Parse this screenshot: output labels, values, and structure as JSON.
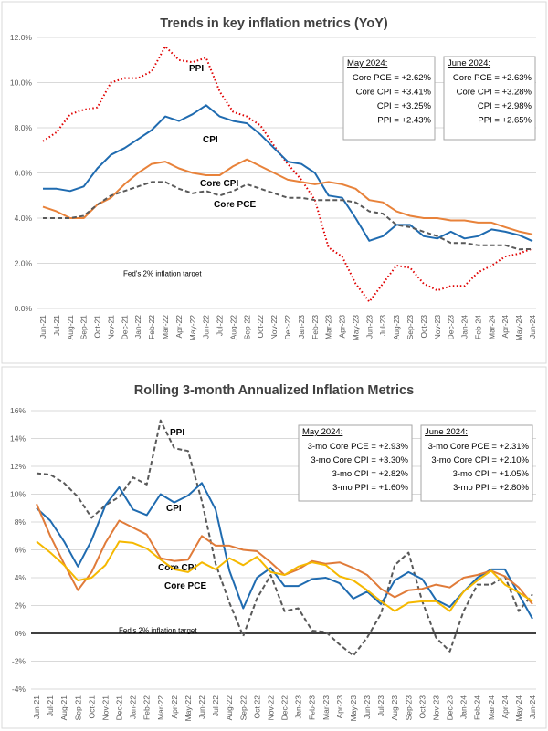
{
  "chart_data": [
    {
      "type": "line",
      "title": "Trends in key inflation metrics (YoY)",
      "xlabel": "",
      "ylabel": "",
      "ylim": [
        0,
        12
      ],
      "yticks": [
        "0.0%",
        "2.0%",
        "4.0%",
        "6.0%",
        "8.0%",
        "10.0%",
        "12.0%"
      ],
      "grid": true,
      "categories": [
        "Jun-21",
        "Jul-21",
        "Aug-21",
        "Sep-21",
        "Oct-21",
        "Nov-21",
        "Dec-21",
        "Jan-22",
        "Feb-22",
        "Mar-22",
        "Apr-22",
        "May-22",
        "Jun-22",
        "Jul-22",
        "Aug-22",
        "Sep-22",
        "Oct-22",
        "Nov-22",
        "Dec-22",
        "Jan-23",
        "Feb-23",
        "Mar-23",
        "Apr-23",
        "May-23",
        "Jun-23",
        "Jul-23",
        "Aug-23",
        "Sep-23",
        "Oct-23",
        "Nov-23",
        "Dec-23",
        "Jan-24",
        "Feb-24",
        "Mar-24",
        "Apr-24",
        "May-24",
        "Jun-24"
      ],
      "series": [
        {
          "name": "PPI",
          "color": "#e00000",
          "style": "dotted",
          "values": [
            7.4,
            7.8,
            8.6,
            8.8,
            8.9,
            10.0,
            10.2,
            10.2,
            10.5,
            11.6,
            11.0,
            10.9,
            11.1,
            9.6,
            8.7,
            8.5,
            8.1,
            7.2,
            6.4,
            5.7,
            4.8,
            2.7,
            2.3,
            1.1,
            0.3,
            1.1,
            1.9,
            1.8,
            1.1,
            0.8,
            1.0,
            1.0,
            1.6,
            1.9,
            2.3,
            2.43,
            2.65
          ]
        },
        {
          "name": "CPI",
          "color": "#1f6bb0",
          "style": "solid",
          "values": [
            5.3,
            5.3,
            5.2,
            5.4,
            6.2,
            6.8,
            7.1,
            7.5,
            7.9,
            8.5,
            8.3,
            8.6,
            9.0,
            8.5,
            8.3,
            8.2,
            7.7,
            7.1,
            6.5,
            6.4,
            6.0,
            5.0,
            4.9,
            4.0,
            3.0,
            3.2,
            3.7,
            3.7,
            3.2,
            3.1,
            3.4,
            3.1,
            3.2,
            3.5,
            3.4,
            3.25,
            2.98
          ]
        },
        {
          "name": "Core CPI",
          "color": "#e8823a",
          "style": "solid",
          "values": [
            4.5,
            4.3,
            4.0,
            4.0,
            4.6,
            4.9,
            5.5,
            6.0,
            6.4,
            6.5,
            6.2,
            6.0,
            5.9,
            5.9,
            6.3,
            6.6,
            6.3,
            6.0,
            5.7,
            5.6,
            5.5,
            5.6,
            5.5,
            5.3,
            4.8,
            4.7,
            4.3,
            4.1,
            4.0,
            4.0,
            3.9,
            3.9,
            3.8,
            3.8,
            3.6,
            3.41,
            3.28
          ]
        },
        {
          "name": "Core PCE",
          "color": "#595959",
          "style": "dashed",
          "values": [
            4.0,
            4.0,
            4.0,
            4.1,
            4.6,
            5.0,
            5.2,
            5.4,
            5.6,
            5.6,
            5.3,
            5.1,
            5.2,
            5.0,
            5.2,
            5.5,
            5.3,
            5.1,
            4.9,
            4.9,
            4.8,
            4.8,
            4.8,
            4.7,
            4.3,
            4.2,
            3.7,
            3.6,
            3.4,
            3.2,
            2.9,
            2.9,
            2.8,
            2.8,
            2.8,
            2.62,
            2.63
          ]
        }
      ],
      "annotation": "Fed's 2% inflation target",
      "boxes": [
        {
          "heading": "May 2024",
          "lines": [
            "Core PCE =  +2.62%",
            "Core CPI =  +3.41%",
            "CPI =  +3.25%",
            "PPI =  +2.43%"
          ]
        },
        {
          "heading": "June 2024",
          "lines": [
            "Core PCE =  +2.63%",
            "Core CPI =  +3.28%",
            "CPI =  +2.98%",
            "PPI =  +2.65%"
          ]
        }
      ]
    },
    {
      "type": "line",
      "title": "Rolling 3-month Annualized Inflation Metrics",
      "xlabel": "",
      "ylabel": "",
      "ylim": [
        -4,
        16
      ],
      "yticks": [
        "-4%",
        "-2%",
        "0%",
        "2%",
        "4%",
        "6%",
        "8%",
        "10%",
        "12%",
        "14%",
        "16%"
      ],
      "grid": true,
      "categories": [
        "Jun-21",
        "Jul-21",
        "Aug-21",
        "Sep-21",
        "Oct-21",
        "Nov-21",
        "Dec-21",
        "Jan-22",
        "Feb-22",
        "Mar-22",
        "Apr-22",
        "May-22",
        "Jun-22",
        "Jul-22",
        "Aug-22",
        "Sep-22",
        "Oct-22",
        "Nov-22",
        "Dec-22",
        "Jan-23",
        "Feb-23",
        "Mar-23",
        "Apr-23",
        "May-23",
        "Jun-23",
        "Jul-23",
        "Aug-23",
        "Sep-23",
        "Oct-23",
        "Nov-23",
        "Dec-23",
        "Jan-24",
        "Feb-24",
        "Mar-24",
        "Apr-24",
        "May-24",
        "Jun-24"
      ],
      "series": [
        {
          "name": "PPI",
          "color": "#595959",
          "style": "dashed",
          "values": [
            11.5,
            11.4,
            10.8,
            9.8,
            8.3,
            9.2,
            9.8,
            11.2,
            10.7,
            15.3,
            13.3,
            13.1,
            9.5,
            5.0,
            2.2,
            -0.2,
            2.5,
            4.2,
            1.6,
            1.8,
            0.2,
            0.1,
            -0.8,
            -1.6,
            -0.3,
            1.4,
            4.9,
            5.8,
            2.3,
            -0.3,
            -1.3,
            1.6,
            3.5,
            3.5,
            4.1,
            1.6,
            2.8
          ]
        },
        {
          "name": "CPI",
          "color": "#1f6bb0",
          "style": "solid",
          "values": [
            9.0,
            8.1,
            6.6,
            4.8,
            6.7,
            9.2,
            10.5,
            8.9,
            8.5,
            10.0,
            9.4,
            9.9,
            10.8,
            8.9,
            4.5,
            1.8,
            4.0,
            4.7,
            3.4,
            3.4,
            3.9,
            4.0,
            3.6,
            2.5,
            3.0,
            2.1,
            3.8,
            4.4,
            3.9,
            2.4,
            1.9,
            3.0,
            4.0,
            4.6,
            4.6,
            2.82,
            1.05
          ]
        },
        {
          "name": "Core CPI",
          "color": "#e07b39",
          "style": "solid",
          "values": [
            9.3,
            7.0,
            5.0,
            3.1,
            4.4,
            6.5,
            8.1,
            7.6,
            7.1,
            5.4,
            5.2,
            5.3,
            7.0,
            6.3,
            6.3,
            6.0,
            5.9,
            5.1,
            4.2,
            4.6,
            5.2,
            5.0,
            5.1,
            4.7,
            4.2,
            3.2,
            2.6,
            3.1,
            3.2,
            3.5,
            3.3,
            4.0,
            4.2,
            4.5,
            4.1,
            3.3,
            2.1
          ]
        },
        {
          "name": "Core PCE",
          "color": "#f5b800",
          "style": "solid",
          "values": [
            6.6,
            5.8,
            4.9,
            3.8,
            4.0,
            4.9,
            6.6,
            6.5,
            6.1,
            5.3,
            4.6,
            4.4,
            5.1,
            4.6,
            5.4,
            4.9,
            5.5,
            4.4,
            4.2,
            4.8,
            5.1,
            4.9,
            4.1,
            3.8,
            3.1,
            2.3,
            1.6,
            2.2,
            2.3,
            2.3,
            1.6,
            3.0,
            3.8,
            4.5,
            3.5,
            2.93,
            2.31
          ]
        }
      ],
      "annotation": "Fed's 2% inflation target",
      "boxes": [
        {
          "heading": "May 2024",
          "lines": [
            "3-mo Core PCE = +2.93%",
            "3-mo Core CPI  = +3.30%",
            "3-mo CPI  = +2.82%",
            "3-mo PPI  = +1.60%"
          ]
        },
        {
          "heading": "June 2024",
          "lines": [
            "3-mo Core PCE = +2.31%",
            "3-mo Core CPI  = +2.10%",
            "3-mo CPI   = +1.05%",
            "3-mo PPI   = +2.80%"
          ]
        }
      ]
    }
  ]
}
